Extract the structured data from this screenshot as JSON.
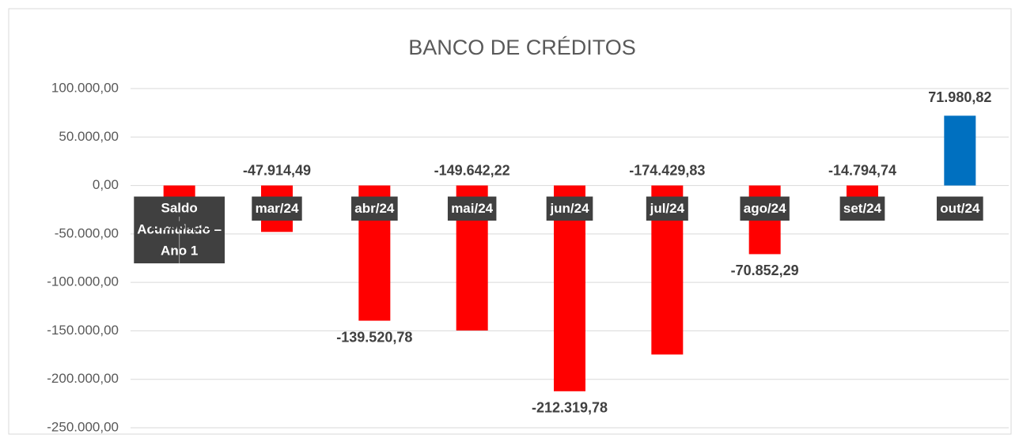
{
  "chart_data": {
    "type": "bar",
    "title": "BANCO DE CRÉDITOS",
    "categories": [
      "Saldo Acumulado – Ano 1",
      "mar/24",
      "abr/24",
      "mai/24",
      "jun/24",
      "jul/24",
      "ago/24",
      "set/24",
      "out/24"
    ],
    "values": [
      -24064.51,
      -47914.49,
      -139520.78,
      -149642.22,
      -212319.78,
      -174429.83,
      -70852.29,
      -14794.74,
      71980.82
    ],
    "value_labels": [
      "-24.064,51",
      "-47.914,49",
      "-139.520,78",
      "-149.642,22",
      "-212.319,78",
      "-174.429,83",
      "-70.852,29",
      "-14.794,74",
      "71.980,82"
    ],
    "colors": [
      "#ff0000",
      "#ff0000",
      "#ff0000",
      "#ff0000",
      "#ff0000",
      "#ff0000",
      "#ff0000",
      "#ff0000",
      "#0070c0"
    ],
    "ylim": [
      -250000,
      100000
    ],
    "yticks": [
      {
        "value": 100000,
        "label": "100.000,00"
      },
      {
        "value": 50000,
        "label": "50.000,00"
      },
      {
        "value": 0,
        "label": "0,00"
      },
      {
        "value": -50000,
        "label": "-50.000,00"
      },
      {
        "value": -100000,
        "label": "-100.000,00"
      },
      {
        "value": -150000,
        "label": "-150.000,00"
      },
      {
        "value": -200000,
        "label": "-200.000,00"
      },
      {
        "value": -250000,
        "label": "-250.000,00"
      }
    ],
    "grid": true
  }
}
